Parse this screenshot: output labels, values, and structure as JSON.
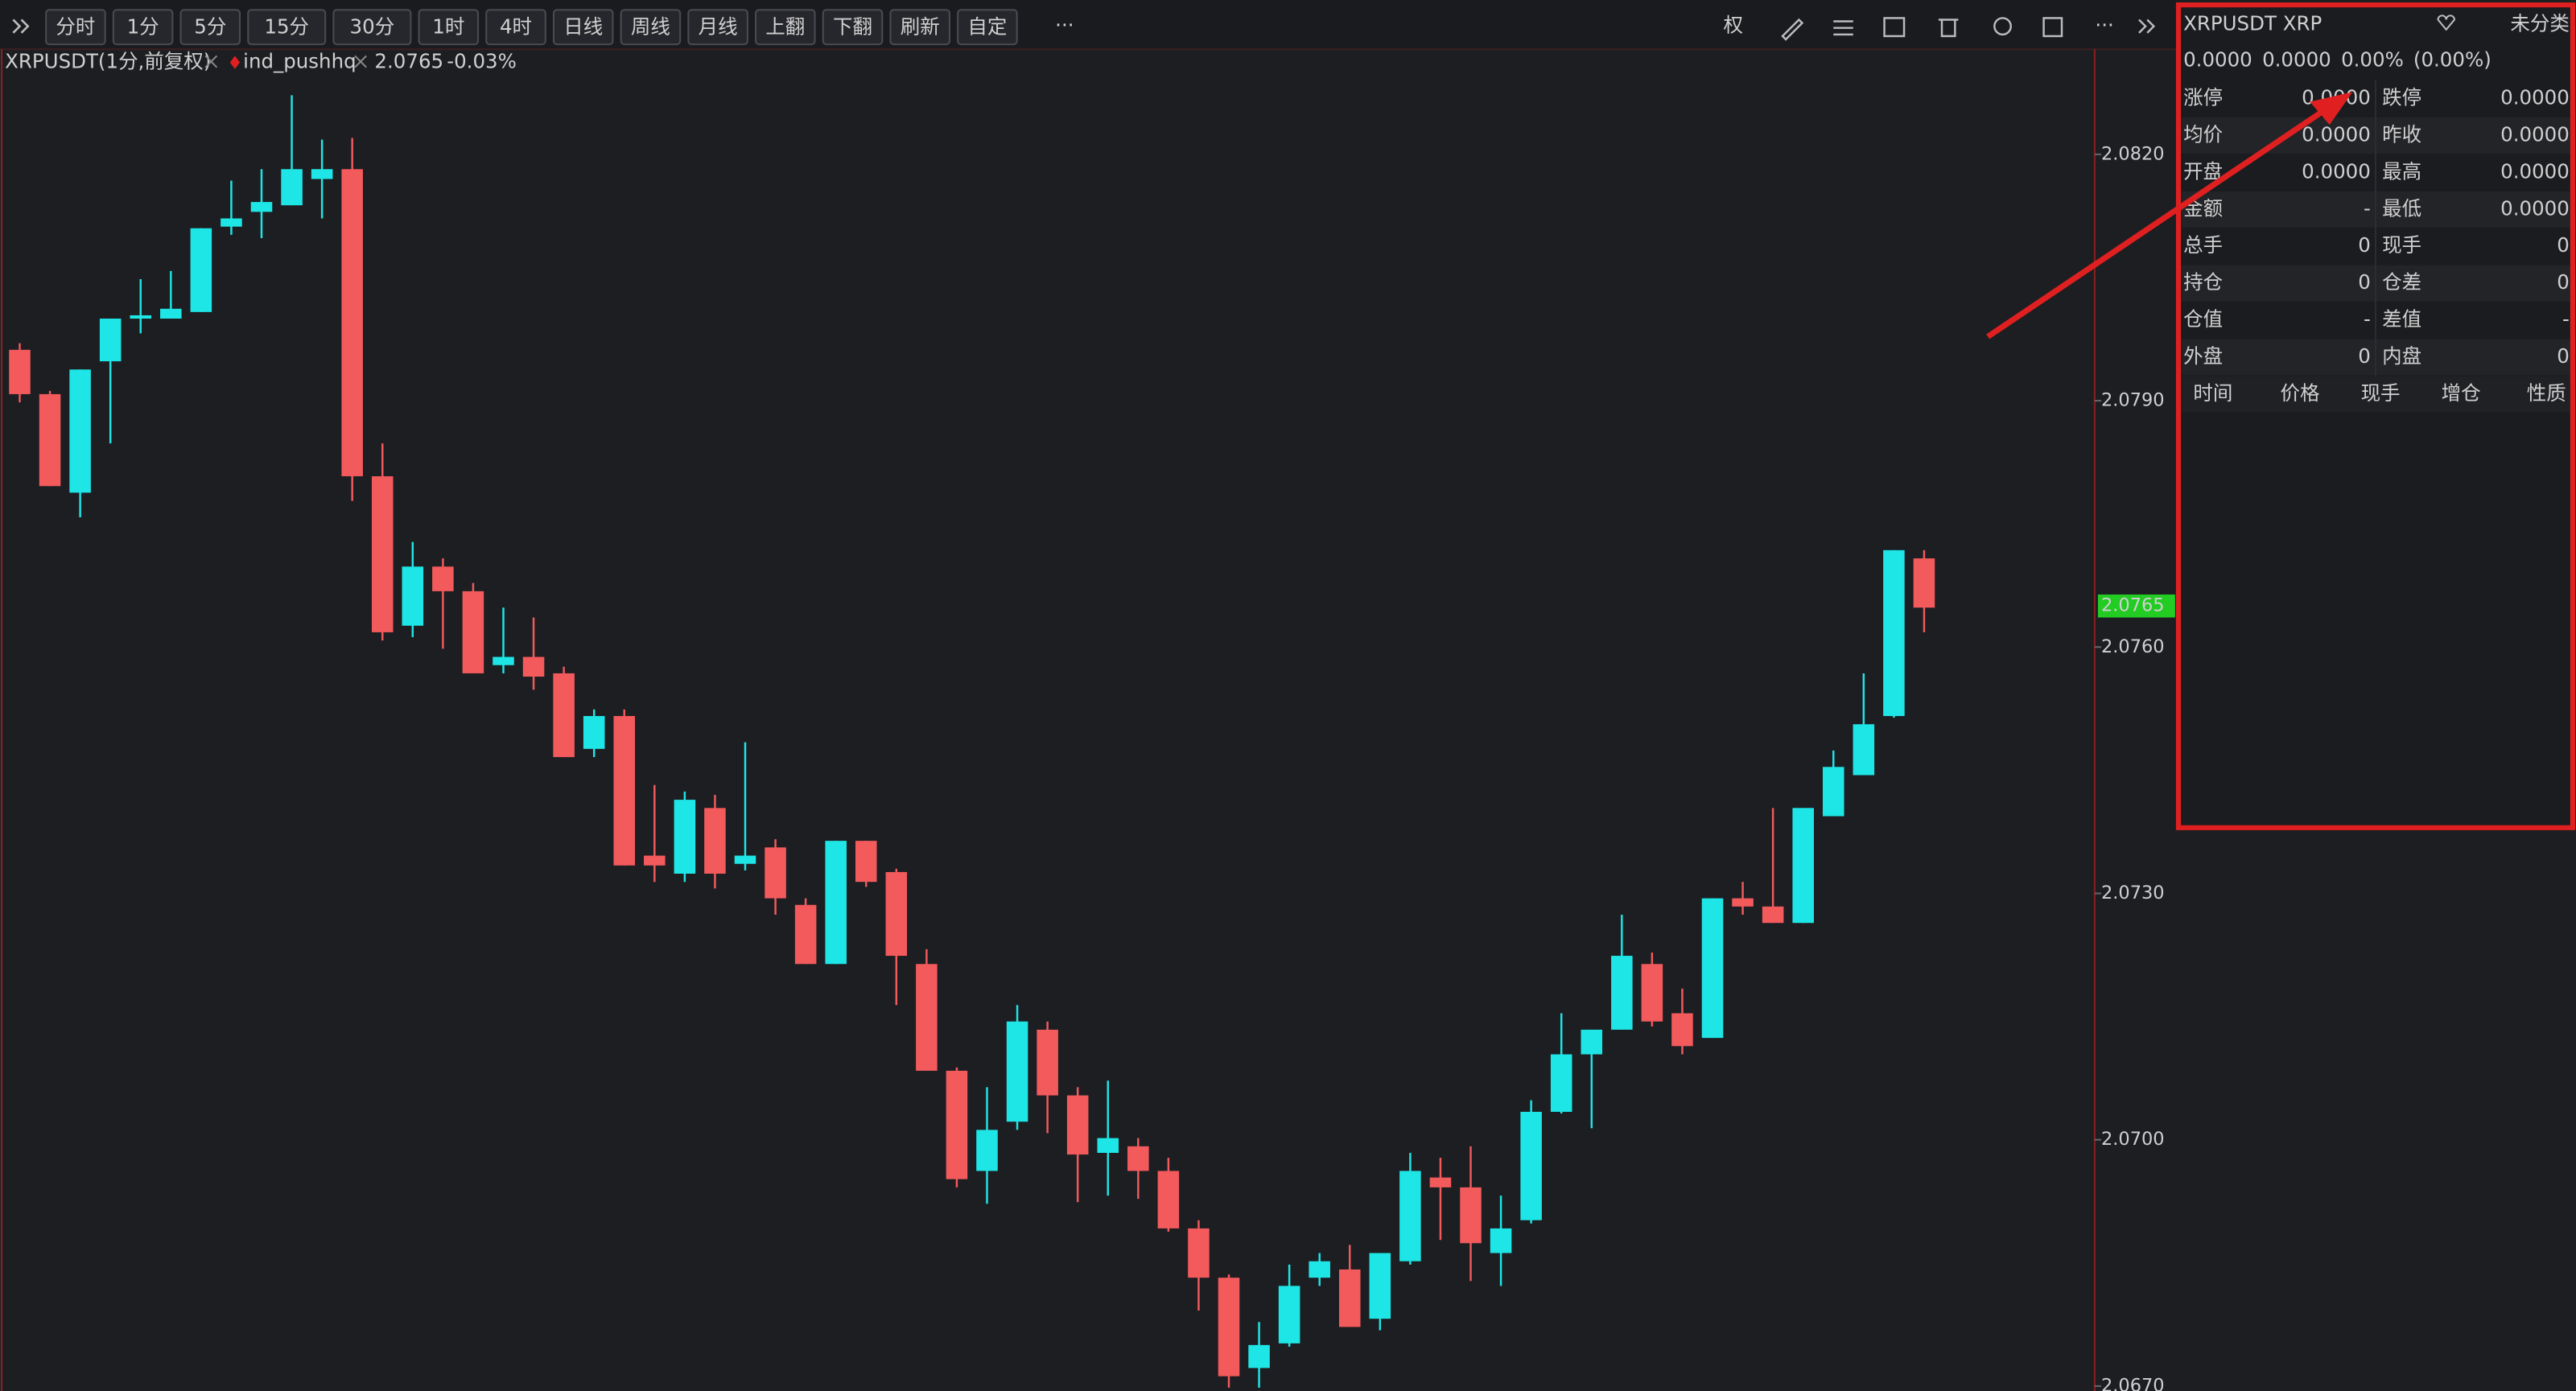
{
  "toolbar": {
    "buttons": [
      "分时",
      "1分",
      "5分",
      "15分",
      "30分",
      "1时",
      "4时",
      "日线",
      "周线",
      "月线",
      "上翻",
      "下翻",
      "刷新",
      "自定"
    ],
    "right_label": "权"
  },
  "legend": {
    "symbol": "XRPUSDT(1分,前复权)",
    "indicator": "ind_pushhq",
    "price": "2.0765",
    "change": "-0.03%"
  },
  "chart_data": {
    "type": "candlestick",
    "up_color": "#1ee6e6",
    "down_color": "#f25a5c",
    "ylim": [
      2.0669,
      2.0833
    ],
    "yticks": [
      {
        "value": 2.082,
        "label": "2.0820"
      },
      {
        "value": 2.079,
        "label": "2.0790"
      },
      {
        "value": 2.076,
        "label": "2.0760"
      },
      {
        "value": 2.073,
        "label": "2.0730"
      },
      {
        "value": 2.07,
        "label": "2.0700"
      },
      {
        "value": 2.067,
        "label": "2.0670"
      }
    ],
    "last_price": 2.0765,
    "last_price_color": "#22cc22",
    "open": [
      2.07962,
      2.07908,
      2.07788,
      2.07948,
      2.08,
      2.08,
      2.08008,
      2.08112,
      2.0813,
      2.08138,
      2.0817,
      2.08182,
      2.07808,
      2.07626,
      2.07698,
      2.07668,
      2.07578,
      2.07588,
      2.07568,
      2.07476,
      2.07516,
      2.07346,
      2.07324,
      2.07404,
      2.07336,
      2.07356,
      2.07286,
      2.07214,
      2.07364,
      2.07326,
      2.07214,
      2.07084,
      2.06962,
      2.07022,
      2.07134,
      2.07054,
      2.06984,
      2.06992,
      2.06962,
      2.06892,
      2.06832,
      2.06722,
      2.06752,
      2.06832,
      2.06842,
      2.06782,
      2.06852,
      2.06954,
      2.06942,
      2.06862,
      2.06902,
      2.07034,
      2.07104,
      2.07134,
      2.07214,
      2.07154,
      2.07124,
      2.07294,
      2.07284,
      2.07264,
      2.07394,
      2.07444,
      2.07516,
      2.07708
    ],
    "high": [
      2.0797,
      2.07912,
      2.07938,
      2.08,
      2.08048,
      2.08058,
      2.0811,
      2.08168,
      2.08182,
      2.08272,
      2.08218,
      2.0822,
      2.07848,
      2.07728,
      2.07708,
      2.07678,
      2.07648,
      2.07636,
      2.07576,
      2.07524,
      2.07524,
      2.07432,
      2.07424,
      2.0742,
      2.07484,
      2.07366,
      2.07294,
      2.07364,
      2.07364,
      2.0733,
      2.07232,
      2.07088,
      2.07064,
      2.07164,
      2.07144,
      2.07064,
      2.07072,
      2.07002,
      2.06978,
      2.06902,
      2.06836,
      2.06778,
      2.06848,
      2.06862,
      2.06872,
      2.06862,
      2.06984,
      2.06978,
      2.06992,
      2.06932,
      2.07048,
      2.07154,
      2.07134,
      2.07274,
      2.07228,
      2.07184,
      2.07294,
      2.07314,
      2.07404,
      2.07404,
      2.07474,
      2.07568,
      2.07718,
      2.07718
    ],
    "low": [
      2.07898,
      2.07796,
      2.07758,
      2.07848,
      2.07982,
      2.08,
      2.08008,
      2.08102,
      2.08098,
      2.08138,
      2.08122,
      2.07778,
      2.07608,
      2.07612,
      2.07598,
      2.07568,
      2.07568,
      2.07548,
      2.07466,
      2.07466,
      2.07334,
      2.07314,
      2.07314,
      2.07306,
      2.07328,
      2.07274,
      2.07214,
      2.07214,
      2.07308,
      2.07164,
      2.07084,
      2.06942,
      2.06922,
      2.07012,
      2.07008,
      2.06924,
      2.06932,
      2.06928,
      2.06888,
      2.06792,
      2.06698,
      2.06698,
      2.06748,
      2.06822,
      2.06772,
      2.06768,
      2.06848,
      2.06878,
      2.06828,
      2.06822,
      2.06898,
      2.07032,
      2.07014,
      2.07134,
      2.07138,
      2.07104,
      2.07124,
      2.07274,
      2.07264,
      2.07264,
      2.07394,
      2.07444,
      2.07514,
      2.07618
    ],
    "close": [
      2.07908,
      2.07796,
      2.07938,
      2.08,
      2.08004,
      2.08012,
      2.0811,
      2.08122,
      2.08142,
      2.08182,
      2.08182,
      2.07808,
      2.07618,
      2.07698,
      2.07668,
      2.07568,
      2.07588,
      2.07564,
      2.07466,
      2.07516,
      2.07334,
      2.07334,
      2.07414,
      2.07324,
      2.07346,
      2.07294,
      2.07214,
      2.07364,
      2.07314,
      2.07224,
      2.07084,
      2.06952,
      2.07012,
      2.07144,
      2.07054,
      2.06982,
      2.07002,
      2.06962,
      2.06892,
      2.06832,
      2.06712,
      2.0675,
      2.06822,
      2.06852,
      2.06772,
      2.06862,
      2.06962,
      2.06942,
      2.06874,
      2.06892,
      2.07034,
      2.07104,
      2.07134,
      2.07224,
      2.07144,
      2.07114,
      2.07294,
      2.07284,
      2.07264,
      2.07404,
      2.07454,
      2.07506,
      2.07718,
      2.07648
    ]
  },
  "panel": {
    "title": "XRPUSDT XRP",
    "category": "未分类",
    "quote": [
      "0.0000",
      "0.0000",
      "0.00%",
      "(0.00%)"
    ],
    "rows": [
      [
        "涨停",
        "0.0000",
        "跌停",
        "0.0000"
      ],
      [
        "均价",
        "0.0000",
        "昨收",
        "0.0000"
      ],
      [
        "开盘",
        "0.0000",
        "最高",
        "0.0000"
      ],
      [
        "金额",
        "-",
        "最低",
        "0.0000"
      ],
      [
        "总手",
        "0",
        "现手",
        "0"
      ],
      [
        "持仓",
        "0",
        "仓差",
        "0"
      ],
      [
        "仓值",
        "-",
        "差值",
        "-"
      ],
      [
        "外盘",
        "0",
        "内盘",
        "0"
      ]
    ],
    "trade_headers": [
      "时间",
      "价格",
      "现手",
      "增仓",
      "性质"
    ]
  }
}
